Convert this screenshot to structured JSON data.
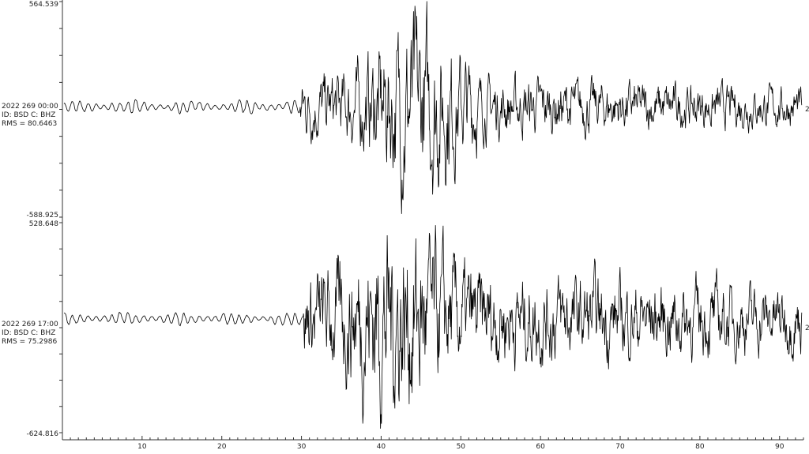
{
  "chart_data": {
    "type": "line",
    "title": "",
    "xlabel": "",
    "ylabel": "",
    "xlim": [
      0,
      93
    ],
    "x_ticks": [
      10,
      20,
      30,
      40,
      50,
      60,
      70,
      80,
      90
    ],
    "x_tick_labels": [
      "10",
      "20",
      "30",
      "40",
      "50",
      "60",
      "70",
      "80",
      "90"
    ],
    "grid": false,
    "line_color": "#000000",
    "traces": [
      {
        "time_label": "2022 269 00:00",
        "id_label": "ID: BSD C: BHZ",
        "rms_label": "RMS = 80.6463",
        "ymax_label": "564.539",
        "ymin_label": "-588.925",
        "ylim": [
          -588.925,
          564.539
        ],
        "right_label": "2",
        "onset_time": 29.8,
        "peak_time": 44.5
      },
      {
        "time_label": "2022 269 17:00",
        "id_label": "ID: BSD C: BHZ",
        "rms_label": "RMS = 75.2986",
        "ymax_label": "528.648",
        "ymin_label": "-624.816",
        "ylim": [
          -624.816,
          528.648
        ],
        "right_label": "2",
        "onset_time": 30.2,
        "peak_time": 42
      }
    ]
  }
}
